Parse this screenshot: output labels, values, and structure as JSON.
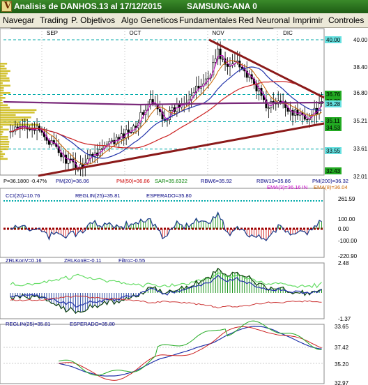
{
  "window": {
    "title": "Analisis de DANHOS.13 al 17/12/2015",
    "symbol": "SAMSUNG-ANA 0"
  },
  "menu": [
    {
      "label": "Navegar",
      "name": "menu-navegar"
    },
    {
      "label": "Trading",
      "name": "menu-trading"
    },
    {
      "label": "P. Objetivos",
      "name": "menu-p-objetivos"
    },
    {
      "label": "Algo Geneticos",
      "name": "menu-algo-geneticos"
    },
    {
      "label": "Fundamentales",
      "name": "menu-fundamentales"
    },
    {
      "label": "Red Neuronal",
      "name": "menu-red-neuronal"
    },
    {
      "label": "Imprimir",
      "name": "menu-imprimir"
    },
    {
      "label": "Controles",
      "name": "menu-controles"
    }
  ],
  "price_panel": {
    "months": [
      "SEP",
      "OCT",
      "NOV",
      "DIC"
    ],
    "axis_labels": [
      "40.00",
      "38.40",
      "36.80",
      "35.21",
      "33.61",
      "32.01"
    ],
    "level_labels": [
      {
        "text": "40.00",
        "bg": "#66e0e0"
      },
      {
        "text": "36.76",
        "bg": "#22aa22"
      },
      {
        "text": "36.30",
        "bg": "#22aa22"
      },
      {
        "text": "36.28",
        "bg": "#66e0e0"
      },
      {
        "text": "35.11",
        "bg": "#22aa22"
      },
      {
        "text": "34.53",
        "bg": "#22aa22"
      },
      {
        "text": "33.55",
        "bg": "#66e0e0"
      },
      {
        "text": "32.43",
        "bg": "#22aa22"
      }
    ],
    "info_row1": [
      {
        "text": "P=36.1800 -0.47%",
        "color": "#000000"
      },
      {
        "text": "PM(20)=36.06",
        "color": "#000080"
      },
      {
        "text": "PM(50)=36.86",
        "color": "#cc0000"
      },
      {
        "text": "SAR=35.6322",
        "color": "#008000"
      },
      {
        "text": "RBW6=35.92",
        "color": "#000080"
      },
      {
        "text": "RBW10=35.86",
        "color": "#000080"
      },
      {
        "text": "PM(200)=36.32",
        "color": "#000080"
      }
    ],
    "info_row2": [
      {
        "text": "EMA(3)=36.16 IN",
        "color": "#cc00cc"
      },
      {
        "text": "EMA(8)=36.04",
        "color": "#cc6600"
      }
    ]
  },
  "cci_panel": {
    "labels": [
      {
        "text": "CCI(20)=10.76",
        "color": "#000080"
      },
      {
        "text": "REGLIN(25)=35.81",
        "color": "#000080"
      },
      {
        "text": "ESPERADO=35.80",
        "color": "#000080"
      }
    ],
    "axis_labels": [
      "261.59",
      "100.00",
      "0.00",
      "-100.00",
      "-220.90"
    ]
  },
  "zrl_panel": {
    "labels": [
      {
        "text": "ZRLKonV=0.16",
        "color": "#000080"
      },
      {
        "text": "ZRLKonB=-0.11",
        "color": "#000080"
      },
      {
        "text": "Filtro=-0.55",
        "color": "#000080"
      }
    ],
    "axis_labels": [
      "2.48",
      "-1.37"
    ]
  },
  "reglin_panel": {
    "labels": [
      {
        "text": "REGLIN(25)=35.81",
        "color": "#000080"
      },
      {
        "text": "ESPERADO=35.80",
        "color": "#000080"
      }
    ],
    "axis_labels": [
      "33.65",
      "37.42",
      "35.20",
      "32.97"
    ]
  },
  "colors": {
    "candle_up": "#ffffff",
    "candle_down": "#000000",
    "trend_line": "#8b1a1a",
    "pm200": "#7a2a7a",
    "ema3": "#cc00cc",
    "ema8": "#cc6600",
    "pm20": "#2233aa",
    "pm50": "#cc2222"
  }
}
